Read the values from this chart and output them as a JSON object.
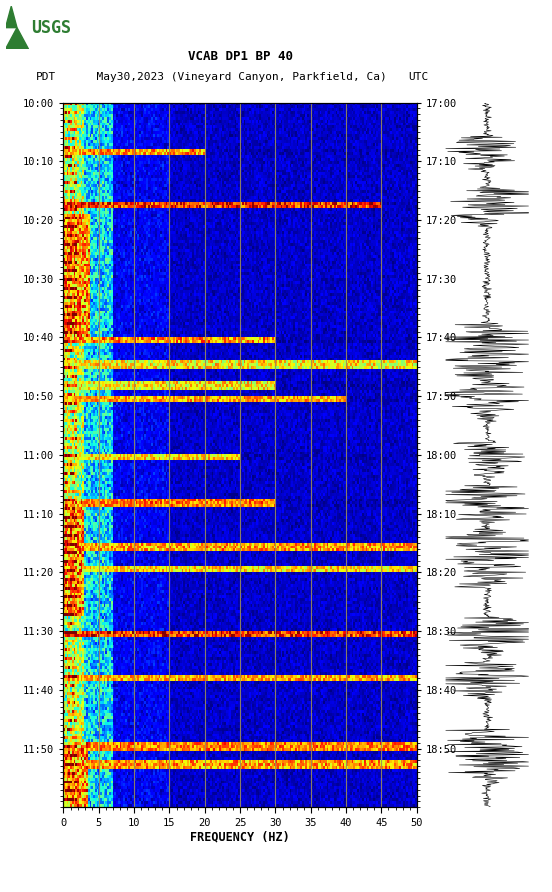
{
  "title_line1": "VCAB DP1 BP 40",
  "title_line2_pdt": "PDT",
  "title_line2_date": "  May30,2023 (Vineyard Canyon, Parkfield, Ca)",
  "title_line2_utc": "UTC",
  "xlabel": "FREQUENCY (HZ)",
  "freq_min": 0,
  "freq_max": 50,
  "time_labels_pdt": [
    "10:00",
    "10:10",
    "10:20",
    "10:30",
    "10:40",
    "10:50",
    "11:00",
    "11:10",
    "11:20",
    "11:30",
    "11:40",
    "11:50"
  ],
  "time_labels_utc": [
    "17:00",
    "17:10",
    "17:20",
    "17:30",
    "17:40",
    "17:50",
    "18:00",
    "18:10",
    "18:20",
    "18:30",
    "18:40",
    "18:50"
  ],
  "freq_ticks": [
    0,
    5,
    10,
    15,
    20,
    25,
    30,
    35,
    40,
    45,
    50
  ],
  "vertical_lines_freq": [
    5,
    10,
    15,
    20,
    25,
    30,
    35,
    40,
    45
  ],
  "background_color": "#ffffff",
  "colormap": "jet",
  "fig_width": 5.52,
  "fig_height": 8.92,
  "dpi": 100,
  "n_time": 240,
  "n_freq": 200,
  "low_freq_cutoff_idx": 30,
  "mid_freq_cutoff_idx": 60
}
